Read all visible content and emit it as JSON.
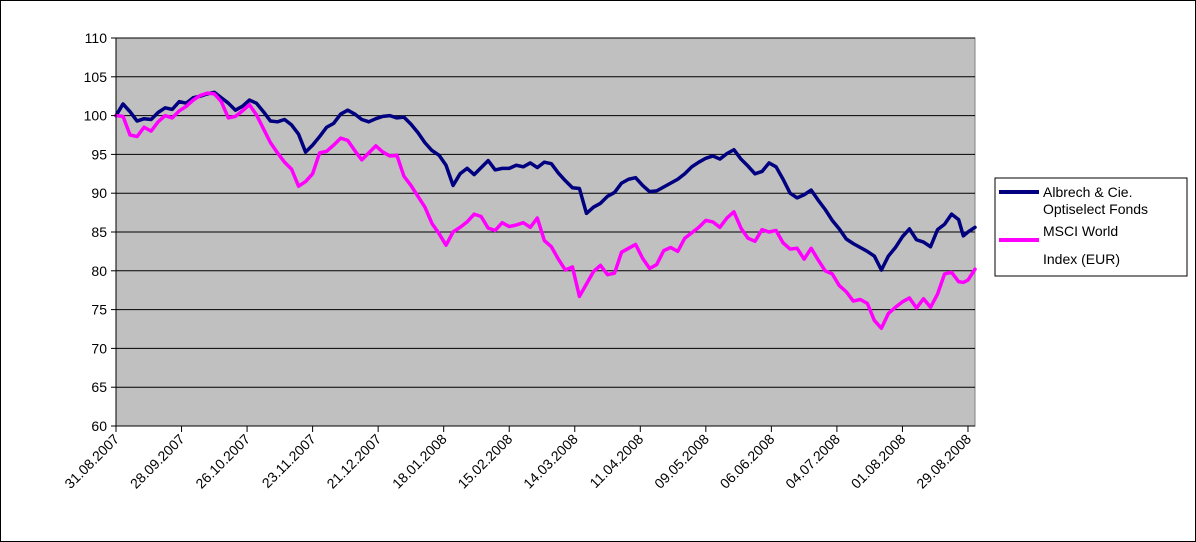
{
  "chart_data": {
    "type": "line",
    "title": "",
    "xlabel": "",
    "ylabel": "",
    "ylim": [
      60,
      110
    ],
    "y_ticks": [
      60,
      65,
      70,
      75,
      80,
      85,
      90,
      95,
      100,
      105,
      110
    ],
    "x_tick_labels": [
      "31.08.2007",
      "28.09.2007",
      "26.10.2007",
      "23.11.2007",
      "21.12.2007",
      "18.01.2008",
      "15.02.2008",
      "14.03.2008",
      "11.04.2008",
      "09.05.2008",
      "06.06.2008",
      "04.07.2008",
      "01.08.2008",
      "29.08.2008"
    ],
    "x_tick_dates": [
      "2007-08-31",
      "2007-09-28",
      "2007-10-26",
      "2007-11-23",
      "2007-12-21",
      "2008-01-18",
      "2008-02-15",
      "2008-03-14",
      "2008-04-11",
      "2008-05-09",
      "2008-06-06",
      "2008-07-04",
      "2008-08-01",
      "2008-08-29"
    ],
    "xlim": [
      "2007-08-31",
      "2008-09-01"
    ],
    "grid": "horizontal",
    "legend_position": "right",
    "plot_background": "#c0c0c0",
    "series": [
      {
        "name": "Albrech & Cie. Optiselect Fonds",
        "name_lines": [
          "Albrech & Cie.",
          "Optiselect Fonds"
        ],
        "color": "#000080",
        "points": [
          [
            "2007-08-31",
            100.0
          ],
          [
            "2007-09-03",
            101.5
          ],
          [
            "2007-09-06",
            100.5
          ],
          [
            "2007-09-09",
            99.3
          ],
          [
            "2007-09-12",
            99.6
          ],
          [
            "2007-09-15",
            99.5
          ],
          [
            "2007-09-18",
            100.4
          ],
          [
            "2007-09-21",
            101.0
          ],
          [
            "2007-09-24",
            100.8
          ],
          [
            "2007-09-27",
            101.8
          ],
          [
            "2007-09-30",
            101.6
          ],
          [
            "2007-10-03",
            102.3
          ],
          [
            "2007-10-06",
            102.5
          ],
          [
            "2007-10-09",
            102.8
          ],
          [
            "2007-10-12",
            103.0
          ],
          [
            "2007-10-15",
            102.3
          ],
          [
            "2007-10-18",
            101.6
          ],
          [
            "2007-10-21",
            100.7
          ],
          [
            "2007-10-24",
            101.2
          ],
          [
            "2007-10-27",
            102.0
          ],
          [
            "2007-10-30",
            101.6
          ],
          [
            "2007-11-02",
            100.5
          ],
          [
            "2007-11-05",
            99.3
          ],
          [
            "2007-11-08",
            99.2
          ],
          [
            "2007-11-11",
            99.5
          ],
          [
            "2007-11-14",
            98.8
          ],
          [
            "2007-11-17",
            97.6
          ],
          [
            "2007-11-20",
            95.3
          ],
          [
            "2007-11-23",
            96.2
          ],
          [
            "2007-11-26",
            97.3
          ],
          [
            "2007-11-29",
            98.5
          ],
          [
            "2007-12-02",
            99.0
          ],
          [
            "2007-12-05",
            100.2
          ],
          [
            "2007-12-08",
            100.7
          ],
          [
            "2007-12-11",
            100.2
          ],
          [
            "2007-12-14",
            99.5
          ],
          [
            "2007-12-17",
            99.2
          ],
          [
            "2007-12-20",
            99.6
          ],
          [
            "2007-12-23",
            99.9
          ],
          [
            "2007-12-26",
            100.0
          ],
          [
            "2007-12-29",
            99.7
          ],
          [
            "2008-01-01",
            99.8
          ],
          [
            "2008-01-04",
            98.9
          ],
          [
            "2008-01-07",
            97.8
          ],
          [
            "2008-01-10",
            96.5
          ],
          [
            "2008-01-13",
            95.5
          ],
          [
            "2008-01-16",
            94.9
          ],
          [
            "2008-01-19",
            93.6
          ],
          [
            "2008-01-22",
            91.0
          ],
          [
            "2008-01-25",
            92.5
          ],
          [
            "2008-01-28",
            93.2
          ],
          [
            "2008-01-31",
            92.4
          ],
          [
            "2008-02-03",
            93.3
          ],
          [
            "2008-02-06",
            94.2
          ],
          [
            "2008-02-09",
            93.0
          ],
          [
            "2008-02-12",
            93.2
          ],
          [
            "2008-02-15",
            93.2
          ],
          [
            "2008-02-18",
            93.6
          ],
          [
            "2008-02-21",
            93.4
          ],
          [
            "2008-02-24",
            93.9
          ],
          [
            "2008-02-27",
            93.3
          ],
          [
            "2008-03-01",
            94.0
          ],
          [
            "2008-03-04",
            93.8
          ],
          [
            "2008-03-07",
            92.6
          ],
          [
            "2008-03-10",
            91.6
          ],
          [
            "2008-03-13",
            90.7
          ],
          [
            "2008-03-16",
            90.6
          ],
          [
            "2008-03-19",
            87.4
          ],
          [
            "2008-03-22",
            88.2
          ],
          [
            "2008-03-25",
            88.7
          ],
          [
            "2008-03-28",
            89.6
          ],
          [
            "2008-03-31",
            90.1
          ],
          [
            "2008-04-03",
            91.3
          ],
          [
            "2008-04-06",
            91.8
          ],
          [
            "2008-04-09",
            92.0
          ],
          [
            "2008-04-12",
            91.0
          ],
          [
            "2008-04-15",
            90.2
          ],
          [
            "2008-04-18",
            90.3
          ],
          [
            "2008-04-21",
            90.8
          ],
          [
            "2008-04-24",
            91.3
          ],
          [
            "2008-04-27",
            91.8
          ],
          [
            "2008-04-30",
            92.5
          ],
          [
            "2008-05-03",
            93.4
          ],
          [
            "2008-05-06",
            94.0
          ],
          [
            "2008-05-09",
            94.5
          ],
          [
            "2008-05-12",
            94.8
          ],
          [
            "2008-05-15",
            94.4
          ],
          [
            "2008-05-18",
            95.1
          ],
          [
            "2008-05-21",
            95.6
          ],
          [
            "2008-05-24",
            94.4
          ],
          [
            "2008-05-27",
            93.5
          ],
          [
            "2008-05-30",
            92.5
          ],
          [
            "2008-06-02",
            92.8
          ],
          [
            "2008-06-05",
            93.9
          ],
          [
            "2008-06-08",
            93.4
          ],
          [
            "2008-06-11",
            91.8
          ],
          [
            "2008-06-14",
            90.0
          ],
          [
            "2008-06-17",
            89.4
          ],
          [
            "2008-06-20",
            89.8
          ],
          [
            "2008-06-23",
            90.4
          ],
          [
            "2008-06-26",
            89.1
          ],
          [
            "2008-06-29",
            87.9
          ],
          [
            "2008-07-02",
            86.5
          ],
          [
            "2008-07-05",
            85.4
          ],
          [
            "2008-07-08",
            84.1
          ],
          [
            "2008-07-11",
            83.5
          ],
          [
            "2008-07-14",
            83.0
          ],
          [
            "2008-07-17",
            82.5
          ],
          [
            "2008-07-20",
            81.9
          ],
          [
            "2008-07-23",
            80.1
          ],
          [
            "2008-07-26",
            81.9
          ],
          [
            "2008-07-29",
            83.0
          ],
          [
            "2008-08-01",
            84.4
          ],
          [
            "2008-08-04",
            85.4
          ],
          [
            "2008-08-07",
            84.0
          ],
          [
            "2008-08-10",
            83.7
          ],
          [
            "2008-08-13",
            83.1
          ],
          [
            "2008-08-16",
            85.3
          ],
          [
            "2008-08-19",
            86.0
          ],
          [
            "2008-08-22",
            87.3
          ],
          [
            "2008-08-25",
            86.6
          ],
          [
            "2008-08-27",
            84.5
          ],
          [
            "2008-08-29",
            85.0
          ],
          [
            "2008-09-01",
            85.6
          ]
        ]
      },
      {
        "name": "MSCI World Index (EUR)",
        "name_lines": [
          "MSCI World",
          "Index (EUR)"
        ],
        "color": "#ff00ff",
        "points": [
          [
            "2007-08-31",
            100.0
          ],
          [
            "2007-09-03",
            99.9
          ],
          [
            "2007-09-06",
            97.5
          ],
          [
            "2007-09-09",
            97.3
          ],
          [
            "2007-09-12",
            98.5
          ],
          [
            "2007-09-15",
            98.0
          ],
          [
            "2007-09-18",
            99.2
          ],
          [
            "2007-09-21",
            100.0
          ],
          [
            "2007-09-24",
            99.7
          ],
          [
            "2007-09-27",
            100.6
          ],
          [
            "2007-09-30",
            101.2
          ],
          [
            "2007-10-03",
            102.0
          ],
          [
            "2007-10-06",
            102.6
          ],
          [
            "2007-10-09",
            102.9
          ],
          [
            "2007-10-12",
            102.8
          ],
          [
            "2007-10-15",
            101.8
          ],
          [
            "2007-10-18",
            99.7
          ],
          [
            "2007-10-21",
            99.9
          ],
          [
            "2007-10-24",
            100.6
          ],
          [
            "2007-10-27",
            101.4
          ],
          [
            "2007-10-30",
            100.1
          ],
          [
            "2007-11-02",
            98.3
          ],
          [
            "2007-11-05",
            96.5
          ],
          [
            "2007-11-08",
            95.2
          ],
          [
            "2007-11-11",
            94.0
          ],
          [
            "2007-11-14",
            93.1
          ],
          [
            "2007-11-17",
            90.9
          ],
          [
            "2007-11-20",
            91.5
          ],
          [
            "2007-11-23",
            92.5
          ],
          [
            "2007-11-26",
            95.2
          ],
          [
            "2007-11-29",
            95.4
          ],
          [
            "2007-12-02",
            96.2
          ],
          [
            "2007-12-05",
            97.1
          ],
          [
            "2007-12-08",
            96.8
          ],
          [
            "2007-12-11",
            95.5
          ],
          [
            "2007-12-14",
            94.3
          ],
          [
            "2007-12-17",
            95.2
          ],
          [
            "2007-12-20",
            96.1
          ],
          [
            "2007-12-23",
            95.3
          ],
          [
            "2007-12-26",
            94.8
          ],
          [
            "2007-12-29",
            94.9
          ],
          [
            "2008-01-01",
            92.2
          ],
          [
            "2008-01-04",
            91.0
          ],
          [
            "2008-01-07",
            89.6
          ],
          [
            "2008-01-10",
            88.2
          ],
          [
            "2008-01-13",
            86.1
          ],
          [
            "2008-01-16",
            84.8
          ],
          [
            "2008-01-19",
            83.3
          ],
          [
            "2008-01-22",
            85.0
          ],
          [
            "2008-01-25",
            85.6
          ],
          [
            "2008-01-28",
            86.3
          ],
          [
            "2008-01-31",
            87.3
          ],
          [
            "2008-02-03",
            87.0
          ],
          [
            "2008-02-06",
            85.5
          ],
          [
            "2008-02-09",
            85.2
          ],
          [
            "2008-02-12",
            86.2
          ],
          [
            "2008-02-15",
            85.7
          ],
          [
            "2008-02-18",
            85.9
          ],
          [
            "2008-02-21",
            86.2
          ],
          [
            "2008-02-24",
            85.6
          ],
          [
            "2008-02-27",
            86.8
          ],
          [
            "2008-03-01",
            83.9
          ],
          [
            "2008-03-04",
            83.1
          ],
          [
            "2008-03-07",
            81.5
          ],
          [
            "2008-03-10",
            80.1
          ],
          [
            "2008-03-13",
            80.5
          ],
          [
            "2008-03-16",
            76.7
          ],
          [
            "2008-03-19",
            78.3
          ],
          [
            "2008-03-22",
            79.9
          ],
          [
            "2008-03-25",
            80.7
          ],
          [
            "2008-03-28",
            79.5
          ],
          [
            "2008-03-31",
            79.7
          ],
          [
            "2008-04-03",
            82.4
          ],
          [
            "2008-04-06",
            82.9
          ],
          [
            "2008-04-09",
            83.4
          ],
          [
            "2008-04-12",
            81.6
          ],
          [
            "2008-04-15",
            80.3
          ],
          [
            "2008-04-18",
            80.8
          ],
          [
            "2008-04-21",
            82.6
          ],
          [
            "2008-04-24",
            83.0
          ],
          [
            "2008-04-27",
            82.5
          ],
          [
            "2008-04-30",
            84.2
          ],
          [
            "2008-05-03",
            84.9
          ],
          [
            "2008-05-06",
            85.6
          ],
          [
            "2008-05-09",
            86.5
          ],
          [
            "2008-05-12",
            86.3
          ],
          [
            "2008-05-15",
            85.6
          ],
          [
            "2008-05-18",
            86.8
          ],
          [
            "2008-05-21",
            87.6
          ],
          [
            "2008-05-24",
            85.5
          ],
          [
            "2008-05-27",
            84.2
          ],
          [
            "2008-05-30",
            83.8
          ],
          [
            "2008-06-02",
            85.3
          ],
          [
            "2008-06-05",
            85.0
          ],
          [
            "2008-06-08",
            85.2
          ],
          [
            "2008-06-11",
            83.6
          ],
          [
            "2008-06-14",
            82.8
          ],
          [
            "2008-06-17",
            82.9
          ],
          [
            "2008-06-20",
            81.5
          ],
          [
            "2008-06-23",
            82.9
          ],
          [
            "2008-06-26",
            81.4
          ],
          [
            "2008-06-29",
            80.0
          ],
          [
            "2008-07-02",
            79.6
          ],
          [
            "2008-07-05",
            78.1
          ],
          [
            "2008-07-08",
            77.3
          ],
          [
            "2008-07-11",
            76.1
          ],
          [
            "2008-07-14",
            76.3
          ],
          [
            "2008-07-17",
            75.8
          ],
          [
            "2008-07-20",
            73.6
          ],
          [
            "2008-07-23",
            72.6
          ],
          [
            "2008-07-26",
            74.5
          ],
          [
            "2008-07-29",
            75.3
          ],
          [
            "2008-08-01",
            76.0
          ],
          [
            "2008-08-04",
            76.5
          ],
          [
            "2008-08-07",
            75.2
          ],
          [
            "2008-08-10",
            76.4
          ],
          [
            "2008-08-13",
            75.3
          ],
          [
            "2008-08-16",
            77.0
          ],
          [
            "2008-08-19",
            79.6
          ],
          [
            "2008-08-22",
            79.8
          ],
          [
            "2008-08-25",
            78.6
          ],
          [
            "2008-08-27",
            78.5
          ],
          [
            "2008-08-29",
            78.8
          ],
          [
            "2008-09-01",
            80.2
          ]
        ]
      }
    ]
  }
}
